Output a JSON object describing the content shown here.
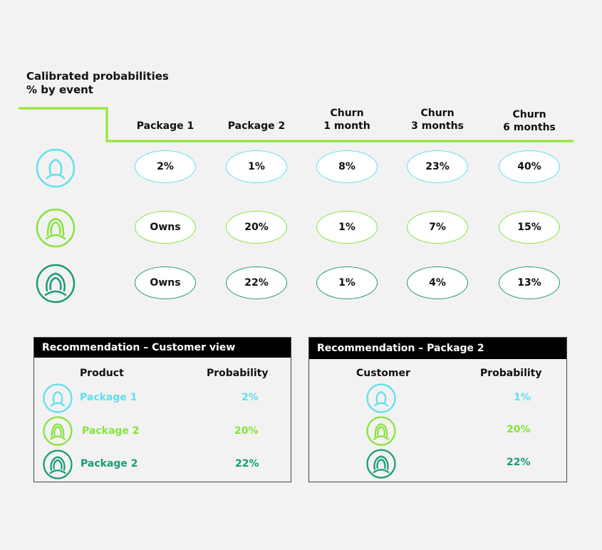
{
  "title": {
    "line1": "Calibrated probabilities",
    "line2": "% by event"
  },
  "columns": [
    {
      "line1": "Package 1",
      "line2": ""
    },
    {
      "line1": "Package 2",
      "line2": ""
    },
    {
      "line1": "Churn",
      "line2": "1 month"
    },
    {
      "line1": "Churn",
      "line2": "3 months"
    },
    {
      "line1": "Churn",
      "line2": "6 months"
    }
  ],
  "colors": {
    "cyan": "#5ee0ee",
    "lime": "#86e33a",
    "teal": "#1a9a78",
    "accent_line": "#8ee62e"
  },
  "rows": [
    {
      "icon": "person-outline-icon",
      "color": "#5ee0ee",
      "values": [
        "2%",
        "1%",
        "8%",
        "23%",
        "40%"
      ]
    },
    {
      "icon": "person-long-hair-icon",
      "color": "#86e33a",
      "values": [
        "Owns",
        "20%",
        "1%",
        "7%",
        "15%"
      ]
    },
    {
      "icon": "person-curly-hair-icon",
      "color": "#1a9a78",
      "values": [
        "Owns",
        "22%",
        "1%",
        "4%",
        "13%"
      ]
    }
  ],
  "panel_customer": {
    "header": "Recommendation – Customer view",
    "col_product": "Product",
    "col_probability": "Probability",
    "rows": [
      {
        "icon": "person-outline-icon",
        "color": "#5ee0ee",
        "product": "Package 1",
        "probability": "2%"
      },
      {
        "icon": "person-long-hair-icon",
        "color": "#86e33a",
        "product": "Package 2",
        "probability": "20%"
      },
      {
        "icon": "person-curly-hair-icon",
        "color": "#1a9a78",
        "product": "Package 2",
        "probability": "22%"
      }
    ]
  },
  "panel_package": {
    "header": "Recommendation – Package 2",
    "col_customer": "Customer",
    "col_probability": "Probability",
    "rows": [
      {
        "icon": "person-outline-icon",
        "color": "#5ee0ee",
        "probability": "1%"
      },
      {
        "icon": "person-long-hair-icon",
        "color": "#86e33a",
        "probability": "20%"
      },
      {
        "icon": "person-curly-hair-icon",
        "color": "#1a9a78",
        "probability": "22%"
      }
    ]
  }
}
